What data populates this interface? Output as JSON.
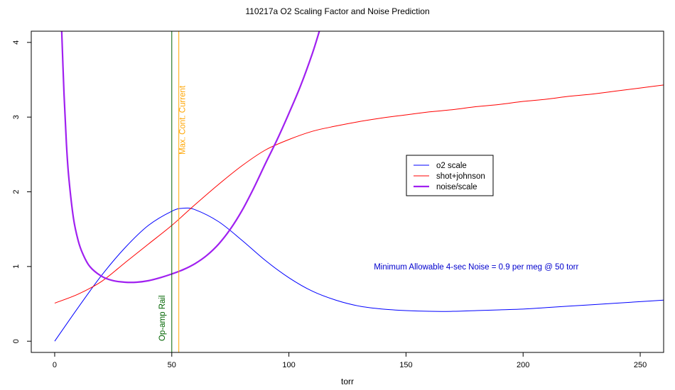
{
  "chart_data": {
    "type": "line",
    "title": "110217a   O2 Scaling Factor and Noise Prediction",
    "xlabel": "torr",
    "ylabel": "",
    "xlim": [
      -10,
      260
    ],
    "ylim": [
      -0.15,
      4.15
    ],
    "x_ticks": [
      0,
      50,
      100,
      150,
      200,
      250
    ],
    "y_ticks": [
      0,
      1,
      2,
      3,
      4
    ],
    "x_tick_labels": [
      "0",
      "50",
      "100",
      "150",
      "200",
      "250"
    ],
    "y_tick_labels": [
      "0",
      "1",
      "2",
      "3",
      "4"
    ],
    "grid": false,
    "legend_position": "center-right",
    "series": [
      {
        "name": "o2 scale",
        "color": "#0000ff",
        "stroke": "thin",
        "x": [
          0,
          10,
          20,
          30,
          40,
          50,
          55,
          60,
          70,
          80,
          90,
          100,
          110,
          120,
          130,
          140,
          150,
          160,
          170,
          180,
          190,
          200,
          210,
          220,
          230,
          240,
          250,
          260
        ],
        "y": [
          0,
          0.45,
          0.88,
          1.25,
          1.55,
          1.74,
          1.78,
          1.76,
          1.6,
          1.35,
          1.08,
          0.85,
          0.67,
          0.55,
          0.47,
          0.43,
          0.41,
          0.4,
          0.4,
          0.41,
          0.42,
          0.43,
          0.45,
          0.47,
          0.49,
          0.51,
          0.53,
          0.55
        ]
      },
      {
        "name": "shot+johnson",
        "color": "#ff0000",
        "stroke": "thin",
        "x": [
          0,
          10,
          20,
          30,
          40,
          50,
          60,
          70,
          80,
          90,
          100,
          110,
          120,
          130,
          140,
          150,
          160,
          170,
          180,
          190,
          200,
          210,
          220,
          230,
          240,
          250,
          260
        ],
        "y": [
          0.51,
          0.63,
          0.8,
          1.05,
          1.3,
          1.55,
          1.83,
          2.1,
          2.35,
          2.56,
          2.7,
          2.81,
          2.88,
          2.94,
          2.99,
          3.03,
          3.07,
          3.1,
          3.14,
          3.17,
          3.21,
          3.24,
          3.28,
          3.31,
          3.35,
          3.39,
          3.43
        ]
      },
      {
        "name": "noise/scale",
        "color": "#a020f0",
        "stroke": "thick",
        "x": [
          3,
          4,
          5,
          6,
          8,
          10,
          12,
          15,
          20,
          25,
          30,
          35,
          40,
          45,
          50,
          55,
          60,
          65,
          70,
          75,
          80,
          85,
          90,
          95,
          100,
          105,
          110,
          113
        ],
        "y": [
          4.15,
          3.3,
          2.65,
          2.2,
          1.65,
          1.35,
          1.17,
          1.0,
          0.87,
          0.81,
          0.79,
          0.79,
          0.81,
          0.85,
          0.9,
          0.96,
          1.04,
          1.15,
          1.3,
          1.5,
          1.75,
          2.05,
          2.38,
          2.7,
          3.05,
          3.42,
          3.85,
          4.15
        ]
      }
    ],
    "vlines": [
      {
        "x": 50,
        "color": "#006400",
        "label": "Op-amp Rail"
      },
      {
        "x": 53,
        "color": "#ffa500",
        "label": "Max. Cont. Current"
      }
    ],
    "annotations": [
      {
        "text": "Minimum Allowable 4-sec Noise =  0.9  per meg @  50  torr",
        "color": "#0000cd",
        "x": 180,
        "y": 1.0
      }
    ]
  }
}
